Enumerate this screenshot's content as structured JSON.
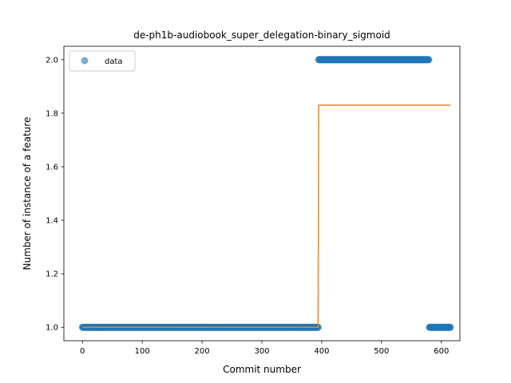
{
  "chart_data": {
    "type": "scatter",
    "title": "de-ph1b-audiobook_super_delegation-binary_sigmoid",
    "xlabel": "Commit number",
    "ylabel": "Number of instance of a feature",
    "xlim": [
      -31,
      631
    ],
    "ylim": [
      0.95,
      2.05
    ],
    "xticks": [
      0,
      100,
      200,
      300,
      400,
      500,
      600
    ],
    "yticks": [
      1.0,
      1.2,
      1.4,
      1.6,
      1.8,
      2.0
    ],
    "xtick_labels": [
      "0",
      "100",
      "200",
      "300",
      "400",
      "500",
      "600"
    ],
    "ytick_labels": [
      "1.0",
      "1.2",
      "1.4",
      "1.6",
      "1.8",
      "2.0"
    ],
    "grid": false,
    "legend": {
      "entries": [
        "data"
      ],
      "placement": "upper-left"
    },
    "series": [
      {
        "name": "data",
        "kind": "scatter",
        "color": "#1f77b4",
        "segments": [
          {
            "x_start": 0,
            "x_end": 394,
            "y": 1.0
          },
          {
            "x_start": 395,
            "x_end": 579,
            "y": 2.0
          },
          {
            "x_start": 580,
            "x_end": 615,
            "y": 1.0
          }
        ]
      },
      {
        "kind": "line",
        "color": "#ff7f0e",
        "points": [
          [
            0,
            1.0
          ],
          [
            394,
            1.0
          ],
          [
            395,
            1.83
          ],
          [
            615,
            1.83
          ]
        ]
      }
    ]
  }
}
